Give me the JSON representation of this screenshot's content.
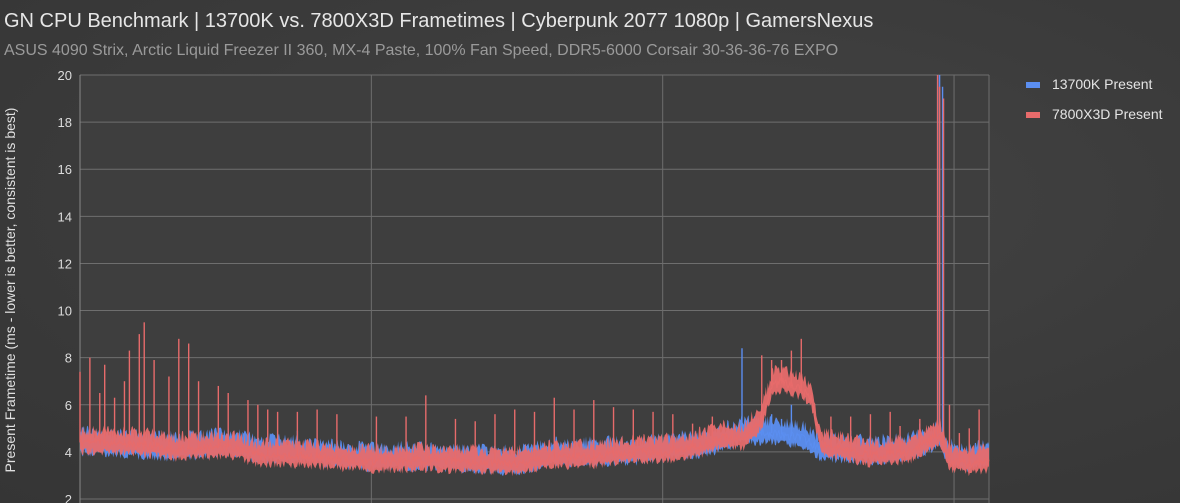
{
  "chart_data": {
    "type": "line",
    "title": "GN CPU Benchmark | 13700K vs. 7800X3D Frametimes | Cyberpunk 2077 1080p | GamersNexus",
    "subtitle": "ASUS 4090 Strix, Arctic Liquid Freezer II 360, MX-4 Paste, 100% Fan Speed, DDR5-6000 Corsair 30-36-36-76 EXPO",
    "xlabel": "",
    "ylabel": "Present Frametime (ms - lower is better, consistent is best)",
    "ylim": [
      2,
      20
    ],
    "yticks": [
      2,
      4,
      6,
      8,
      10,
      12,
      14,
      16,
      18,
      20
    ],
    "grid": true,
    "legend_position": "right",
    "series": [
      {
        "name": "13700K Present",
        "color": "#5b8ef0",
        "baseline": [
          [
            0,
            4.35
          ],
          [
            6,
            4.2
          ],
          [
            10,
            4.1
          ],
          [
            15,
            4.3
          ],
          [
            18,
            4.0
          ],
          [
            20,
            4.0
          ],
          [
            30,
            3.65
          ],
          [
            35,
            3.7
          ],
          [
            40,
            3.6
          ],
          [
            44,
            3.5
          ],
          [
            48,
            3.85
          ],
          [
            52,
            3.9
          ],
          [
            55,
            3.9
          ],
          [
            60,
            4.1
          ],
          [
            63,
            4.2
          ],
          [
            65,
            4.5
          ],
          [
            67,
            4.8
          ],
          [
            70,
            4.8
          ],
          [
            73,
            4.6
          ],
          [
            75,
            4.1
          ],
          [
            80,
            3.95
          ],
          [
            84,
            4.1
          ],
          [
            86,
            4.4
          ],
          [
            87,
            4.6
          ],
          [
            88,
            3.8
          ],
          [
            90,
            3.6
          ],
          [
            92,
            3.9
          ]
        ],
        "spikes": [
          [
            8,
            4.9
          ],
          [
            22,
            4.9
          ],
          [
            63,
            4.8
          ],
          [
            67,
            8.4
          ],
          [
            69,
            6.1
          ],
          [
            70,
            5.6
          ],
          [
            71,
            5.4
          ],
          [
            72,
            6.0
          ],
          [
            78,
            4.9
          ],
          [
            85,
            5.2
          ],
          [
            86.8,
            20
          ],
          [
            87,
            20
          ],
          [
            87.3,
            19.5
          ]
        ]
      },
      {
        "name": "7800X3D Present",
        "color": "#e76b6b",
        "baseline": [
          [
            0,
            4.4
          ],
          [
            6,
            4.3
          ],
          [
            10,
            4.1
          ],
          [
            15,
            4.2
          ],
          [
            18,
            3.85
          ],
          [
            20,
            3.85
          ],
          [
            30,
            3.6
          ],
          [
            35,
            3.65
          ],
          [
            40,
            3.55
          ],
          [
            44,
            3.5
          ],
          [
            48,
            3.75
          ],
          [
            52,
            3.8
          ],
          [
            55,
            3.95
          ],
          [
            60,
            4.05
          ],
          [
            63,
            4.3
          ],
          [
            65,
            4.6
          ],
          [
            67,
            4.5
          ],
          [
            69,
            5.4
          ],
          [
            70,
            6.8
          ],
          [
            71,
            7.0
          ],
          [
            73,
            6.7
          ],
          [
            74,
            6.3
          ],
          [
            75,
            4.3
          ],
          [
            80,
            3.85
          ],
          [
            84,
            4.0
          ],
          [
            86,
            4.5
          ],
          [
            87,
            4.8
          ],
          [
            88,
            3.6
          ],
          [
            90,
            3.5
          ],
          [
            92,
            3.6
          ]
        ],
        "spikes": [
          [
            0,
            7.4
          ],
          [
            1,
            8.0
          ],
          [
            2,
            6.5
          ],
          [
            2.5,
            7.7
          ],
          [
            3.5,
            6.3
          ],
          [
            4.5,
            7.0
          ],
          [
            5,
            8.3
          ],
          [
            6,
            9.0
          ],
          [
            6.5,
            9.5
          ],
          [
            7.5,
            7.9
          ],
          [
            9,
            7.2
          ],
          [
            10,
            8.8
          ],
          [
            11,
            8.6
          ],
          [
            12,
            7.0
          ],
          [
            14,
            6.8
          ],
          [
            15,
            6.5
          ],
          [
            17,
            6.2
          ],
          [
            18,
            6.0
          ],
          [
            19,
            5.8
          ],
          [
            20,
            5.7
          ],
          [
            22,
            5.7
          ],
          [
            24,
            5.8
          ],
          [
            26,
            5.6
          ],
          [
            30,
            5.5
          ],
          [
            33,
            5.5
          ],
          [
            35,
            6.4
          ],
          [
            38,
            5.4
          ],
          [
            40,
            5.3
          ],
          [
            42,
            5.6
          ],
          [
            44,
            5.8
          ],
          [
            46,
            5.7
          ],
          [
            48,
            6.3
          ],
          [
            50,
            5.8
          ],
          [
            52,
            6.2
          ],
          [
            54,
            5.9
          ],
          [
            56,
            5.8
          ],
          [
            58,
            5.7
          ],
          [
            60,
            5.6
          ],
          [
            62,
            5.2
          ],
          [
            64,
            5.5
          ],
          [
            66,
            5.0
          ],
          [
            69,
            8.1
          ],
          [
            70,
            7.9
          ],
          [
            71,
            7.9
          ],
          [
            72,
            8.3
          ],
          [
            73,
            8.8
          ],
          [
            76,
            5.5
          ],
          [
            78,
            5.5
          ],
          [
            80,
            5.6
          ],
          [
            82,
            5.7
          ],
          [
            83,
            5.1
          ],
          [
            85,
            5.4
          ],
          [
            86.5,
            5.0
          ],
          [
            86.8,
            20
          ],
          [
            87,
            19.5
          ],
          [
            87.4,
            19.0
          ],
          [
            88,
            6.0
          ],
          [
            89,
            4.8
          ],
          [
            90,
            5.0
          ],
          [
            91,
            5.8
          ]
        ]
      }
    ]
  }
}
